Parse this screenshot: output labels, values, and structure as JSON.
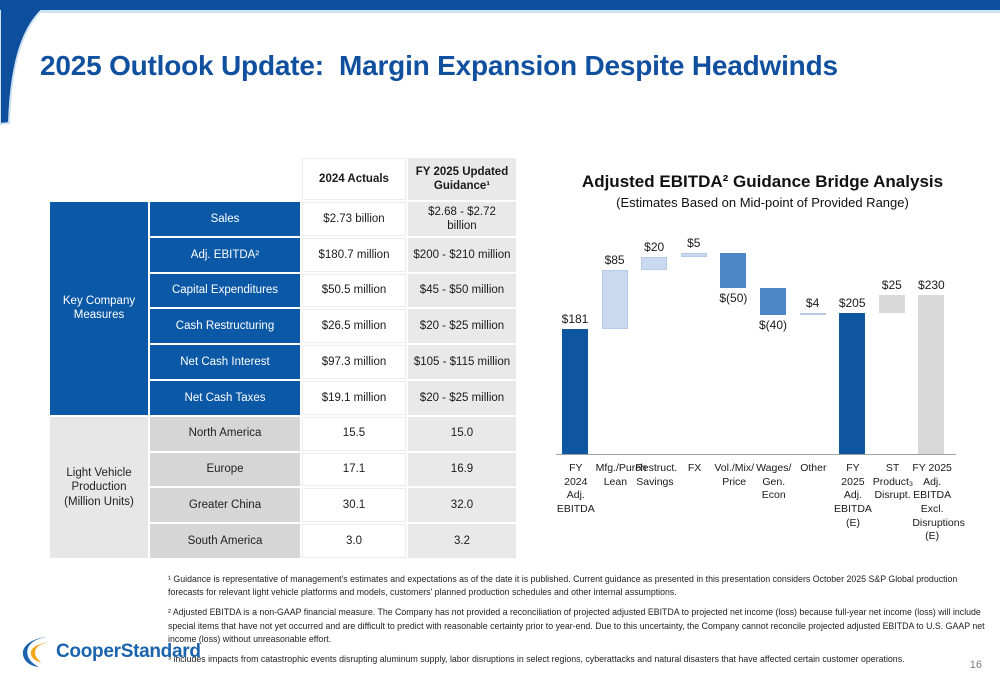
{
  "header": {
    "title": "2025 Outlook Update:  Margin Expansion Despite Headwinds"
  },
  "table": {
    "col_headers": {
      "actuals": "2024 Actuals",
      "guidance": "FY 2025 Updated\nGuidance¹"
    },
    "groups": [
      {
        "name": "Key Company\nMeasures",
        "rows": [
          {
            "label": "Sales",
            "actual": "$2.73 billion",
            "guidance": "$2.68 - $2.72 billion"
          },
          {
            "label": "Adj. EBITDA²",
            "actual": "$180.7 million",
            "guidance": "$200 - $210 million"
          },
          {
            "label": "Capital Expenditures",
            "actual": "$50.5 million",
            "guidance": "$45 - $50 million"
          },
          {
            "label": "Cash Restructuring",
            "actual": "$26.5 million",
            "guidance": "$20 - $25 million"
          },
          {
            "label": "Net Cash Interest",
            "actual": "$97.3 million",
            "guidance": "$105 - $115 million"
          },
          {
            "label": "Net Cash Taxes",
            "actual": "$19.1 million",
            "guidance": "$20 - $25 million"
          }
        ]
      },
      {
        "name": "Light Vehicle\nProduction\n(Million Units)",
        "rows": [
          {
            "label": "North America",
            "actual": "15.5",
            "guidance": "15.0"
          },
          {
            "label": "Europe",
            "actual": "17.1",
            "guidance": "16.9"
          },
          {
            "label": "Greater China",
            "actual": "30.1",
            "guidance": "32.0"
          },
          {
            "label": "South America",
            "actual": "3.0",
            "guidance": "3.2"
          }
        ]
      }
    ]
  },
  "chart_data": {
    "type": "bar",
    "subtype": "waterfall",
    "title": "Adjusted EBITDA² Guidance Bridge Analysis",
    "subtitle": "(Estimates Based on Mid-point of Provided Range)",
    "unit": "$ millions",
    "ylim": [
      0,
      300
    ],
    "grid": false,
    "colors": {
      "dark": "#0e57a0",
      "positive": "#c9d9f0",
      "negative": "#4e86c6",
      "gray": "#d9d9d9"
    },
    "bars": [
      {
        "category": "FY\n2024\nAdj.\nEBITDA",
        "label": "$181",
        "start": 0,
        "end": 181,
        "color": "dark",
        "value_label_pos": "above"
      },
      {
        "category": "Mfg./Purch\nLean",
        "label": "$85",
        "start": 181,
        "end": 266,
        "color": "positive",
        "value_label_pos": "above"
      },
      {
        "category": "Restruct.\nSavings",
        "label": "$20",
        "start": 266,
        "end": 286,
        "color": "positive",
        "value_label_pos": "above"
      },
      {
        "category": "FX",
        "label": "$5",
        "start": 286,
        "end": 291,
        "color": "positive",
        "value_label_pos": "above"
      },
      {
        "category": "Vol./Mix/\nPrice",
        "label": "$(50)",
        "start": 291,
        "end": 241,
        "color": "negative",
        "value_label_pos": "below"
      },
      {
        "category": "Wages/\nGen.\nEcon",
        "label": "$(40)",
        "start": 241,
        "end": 201,
        "color": "negative",
        "value_label_pos": "below"
      },
      {
        "category": "Other",
        "label": "$4",
        "start": 201,
        "end": 205,
        "color": "positive",
        "value_label_pos": "above"
      },
      {
        "category": "FY\n2025\nAdj.\nEBITDA\n(E)",
        "label": "$205",
        "start": 0,
        "end": 205,
        "color": "dark",
        "value_label_pos": "above"
      },
      {
        "category": "ST\nProduct₃\nDisrupt.",
        "label": "$25",
        "start": 205,
        "end": 230,
        "color": "gray",
        "value_label_pos": "above"
      },
      {
        "category": "FY 2025\nAdj.\nEBITDA\nExcl.\nDisruptions\n(E)",
        "label": "$230",
        "start": 0,
        "end": 230,
        "color": "gray",
        "value_label_pos": "above"
      }
    ]
  },
  "footnotes": [
    "¹ Guidance is representative of management's estimates and expectations as of the date it is published. Current guidance as presented in this presentation considers October 2025 S&P Global production forecasts for relevant light vehicle platforms and models, customers' planned production schedules and other internal assumptions.",
    "² Adjusted EBITDA is a non-GAAP financial measure. The Company has not provided a reconciliation of projected adjusted EBITDA to projected net income (loss) because full-year net income (loss) will include special items that have not yet occurred and are difficult to predict with reasonable certainty prior to year-end. Due to this uncertainty, the Company cannot reconcile projected adjusted EBITDA to U.S. GAAP net income (loss) without unreasonable effort.",
    "³ includes impacts from catastrophic events disrupting aluminum supply, labor disruptions in select regions, cyberattacks and natural disasters that have affected certain customer operations."
  ],
  "logo": {
    "text": "CooperStandard"
  },
  "page_number": "16",
  "colors": {
    "accent_blue": "#0d4f9c",
    "table_blue": "#0b58a6",
    "light_rule": "#cfe2f3",
    "logo_orange": "#f2a71c"
  }
}
